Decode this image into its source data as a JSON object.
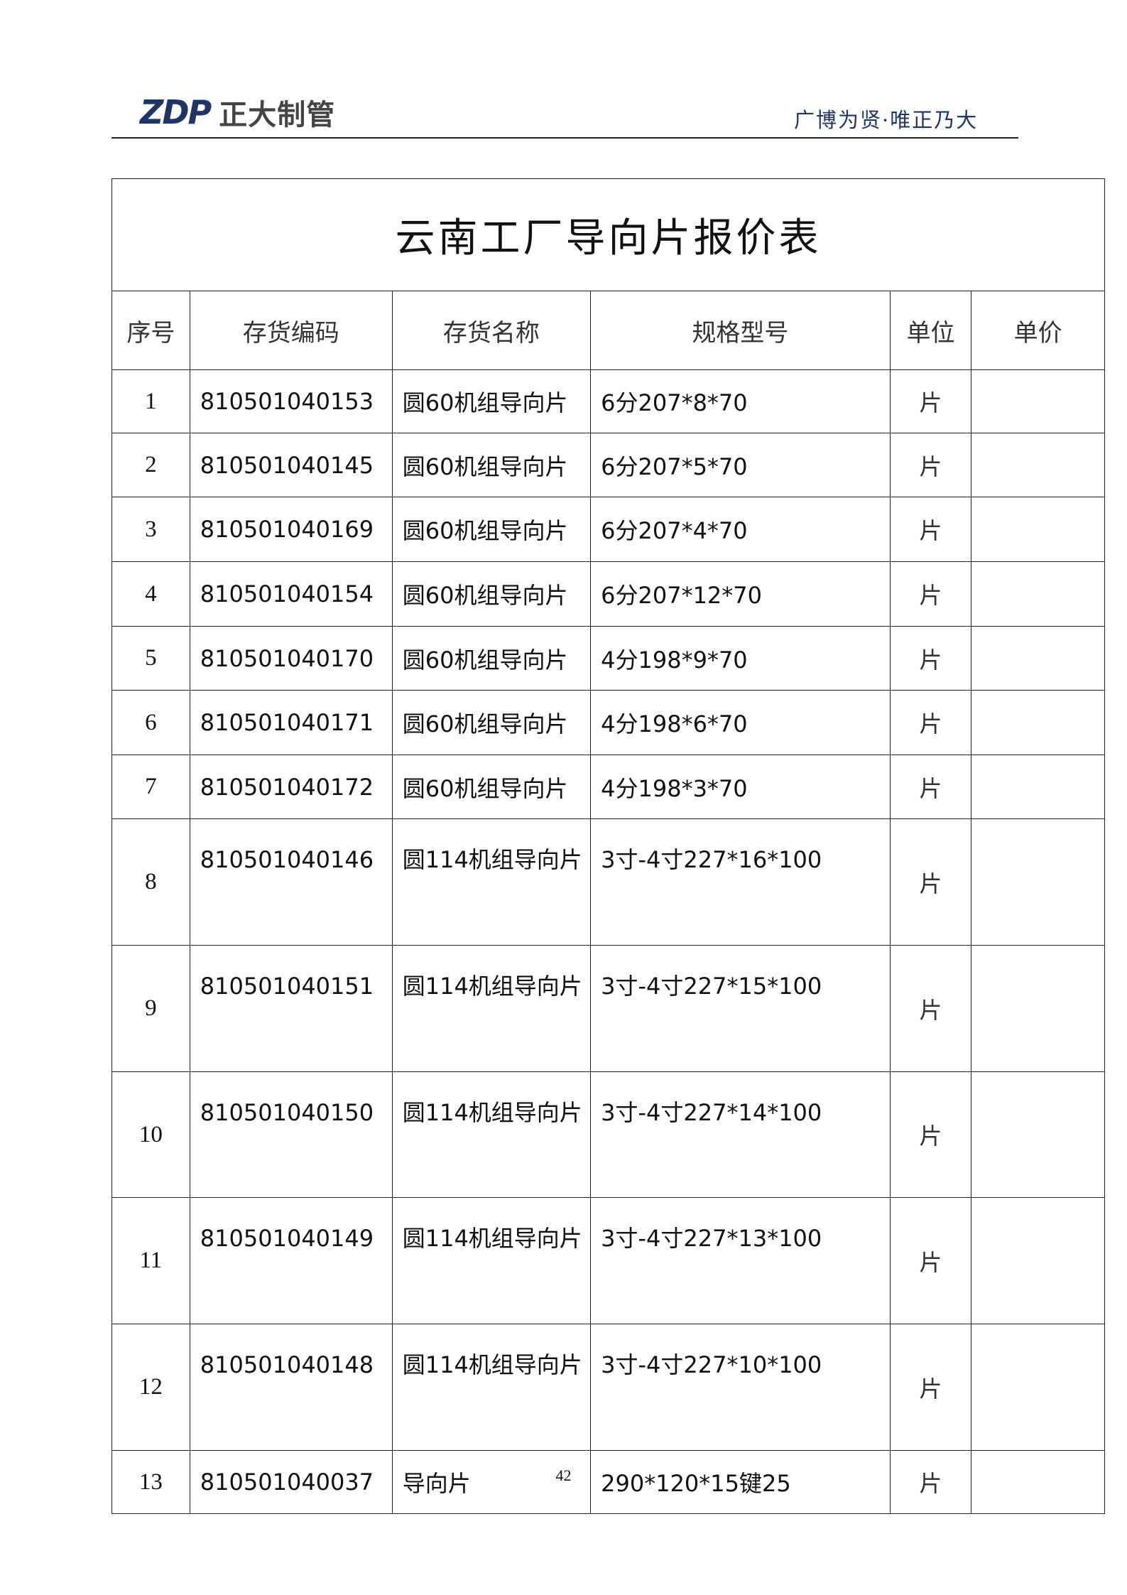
{
  "header": {
    "logo_mark": "ZDP",
    "logo_text": "正大制管",
    "slogan": "广博为贤·唯正乃大"
  },
  "table": {
    "title": "云南工厂导向片报价表",
    "columns": [
      "序号",
      "存货编码",
      "存货名称",
      "规格型号",
      "单位",
      "单价"
    ],
    "rows": [
      {
        "no": "1",
        "code": "810501040153",
        "name": "圆60机组导向片",
        "spec": "6分207*8*70",
        "unit": "片",
        "price": ""
      },
      {
        "no": "2",
        "code": "810501040145",
        "name": "圆60机组导向片",
        "spec": "6分207*5*70",
        "unit": "片",
        "price": ""
      },
      {
        "no": "3",
        "code": "810501040169",
        "name": "圆60机组导向片",
        "spec": "6分207*4*70",
        "unit": "片",
        "price": ""
      },
      {
        "no": "4",
        "code": "810501040154",
        "name": "圆60机组导向片",
        "spec": "6分207*12*70",
        "unit": "片",
        "price": ""
      },
      {
        "no": "5",
        "code": "810501040170",
        "name": "圆60机组导向片",
        "spec": "4分198*9*70",
        "unit": "片",
        "price": ""
      },
      {
        "no": "6",
        "code": "810501040171",
        "name": "圆60机组导向片",
        "spec": "4分198*6*70",
        "unit": "片",
        "price": ""
      },
      {
        "no": "7",
        "code": "810501040172",
        "name": "圆60机组导向片",
        "spec": "4分198*3*70",
        "unit": "片",
        "price": ""
      },
      {
        "no": "8",
        "code": "810501040146",
        "name": "圆114机组导向片",
        "spec": "3寸-4寸227*16*100",
        "unit": "片",
        "price": ""
      },
      {
        "no": "9",
        "code": "810501040151",
        "name": "圆114机组导向片",
        "spec": "3寸-4寸227*15*100",
        "unit": "片",
        "price": ""
      },
      {
        "no": "10",
        "code": "810501040150",
        "name": "圆114机组导向片",
        "spec": "3寸-4寸227*14*100",
        "unit": "片",
        "price": ""
      },
      {
        "no": "11",
        "code": "810501040149",
        "name": "圆114机组导向片",
        "spec": "3寸-4寸227*13*100",
        "unit": "片",
        "price": ""
      },
      {
        "no": "12",
        "code": "810501040148",
        "name": "圆114机组导向片",
        "spec": "3寸-4寸227*10*100",
        "unit": "片",
        "price": ""
      },
      {
        "no": "13",
        "code": "810501040037",
        "name": "导向片",
        "spec": "290*120*15键25",
        "unit": "片",
        "price": ""
      }
    ]
  },
  "footer": {
    "page_number": "42"
  }
}
